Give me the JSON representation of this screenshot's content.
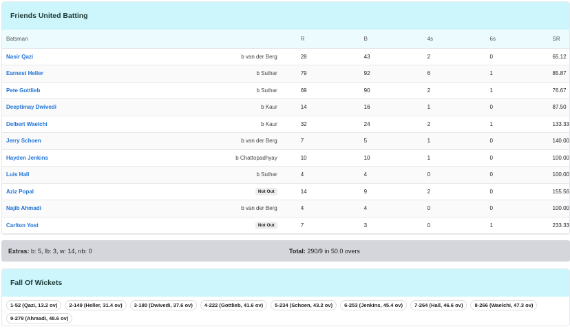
{
  "batting": {
    "title": "Friends United Batting",
    "headers": {
      "batsman": "Batsman",
      "r": "R",
      "b": "B",
      "fours": "4s",
      "sixes": "6s",
      "sr": "SR"
    },
    "rows": [
      {
        "name": "Nasir Qazi",
        "dismissal": "b van der Berg",
        "notout": false,
        "r": "28",
        "b": "43",
        "fours": "2",
        "sixes": "0",
        "sr": "65.12"
      },
      {
        "name": "Earnest Heller",
        "dismissal": "b Suthar",
        "notout": false,
        "r": "79",
        "b": "92",
        "fours": "6",
        "sixes": "1",
        "sr": "85.87"
      },
      {
        "name": "Pete Gottlieb",
        "dismissal": "b Suthar",
        "notout": false,
        "r": "69",
        "b": "90",
        "fours": "2",
        "sixes": "1",
        "sr": "76.67"
      },
      {
        "name": "Deeptimay Dwivedi",
        "dismissal": "b Kaur",
        "notout": false,
        "r": "14",
        "b": "16",
        "fours": "1",
        "sixes": "0",
        "sr": "87.50"
      },
      {
        "name": "Delbert Waelchi",
        "dismissal": "b Kaur",
        "notout": false,
        "r": "32",
        "b": "24",
        "fours": "2",
        "sixes": "1",
        "sr": "133.33"
      },
      {
        "name": "Jerry Schoen",
        "dismissal": "b van der Berg",
        "notout": false,
        "r": "7",
        "b": "5",
        "fours": "1",
        "sixes": "0",
        "sr": "140.00"
      },
      {
        "name": "Hayden Jenkins",
        "dismissal": "b Chattopadhyay",
        "notout": false,
        "r": "10",
        "b": "10",
        "fours": "1",
        "sixes": "0",
        "sr": "100.00"
      },
      {
        "name": "Luis Hall",
        "dismissal": "b Suthar",
        "notout": false,
        "r": "4",
        "b": "4",
        "fours": "0",
        "sixes": "0",
        "sr": "100.00"
      },
      {
        "name": "Aziz Popal",
        "dismissal": "Not Out",
        "notout": true,
        "r": "14",
        "b": "9",
        "fours": "2",
        "sixes": "0",
        "sr": "155.56"
      },
      {
        "name": "Najib Ahmadi",
        "dismissal": "b van der Berg",
        "notout": false,
        "r": "4",
        "b": "4",
        "fours": "0",
        "sixes": "0",
        "sr": "100.00"
      },
      {
        "name": "Carlton Yost",
        "dismissal": "Not Out",
        "notout": true,
        "r": "7",
        "b": "3",
        "fours": "0",
        "sixes": "1",
        "sr": "233.33"
      }
    ]
  },
  "summary": {
    "extras_label": "Extras:",
    "extras_value": " b: 5, lb: 3, w: 14, nb: 0",
    "total_label": "Total:",
    "total_value": " 290/9 in 50.0 overs"
  },
  "fow": {
    "title": "Fall Of Wickets",
    "items": [
      "1-52 (Qazi, 13.2 ov)",
      "2-149 (Heller, 31.4 ov)",
      "3-180 (Dwivedi, 37.6 ov)",
      "4-222 (Gottlieb, 41.6 ov)",
      "5-234 (Schoen, 43.2 ov)",
      "6-253 (Jenkins, 45.4 ov)",
      "7-264 (Hall, 46.6 ov)",
      "8-266 (Waelchi, 47.3 ov)",
      "9-279 (Ahmadi, 48.6 ov)"
    ]
  }
}
